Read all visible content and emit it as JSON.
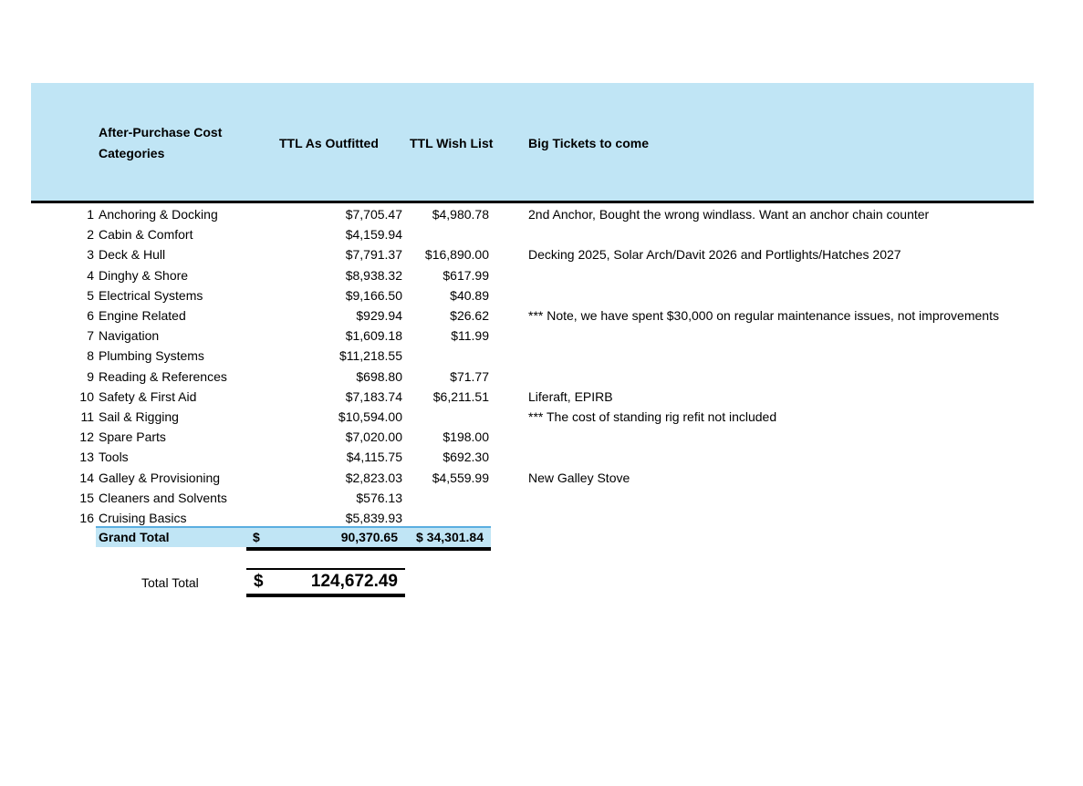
{
  "header": {
    "category": "After-Purchase Cost Categories",
    "outfitted": "TTL As Outfitted",
    "wish": "TTL Wish List",
    "tickets": "Big Tickets to come"
  },
  "rows": [
    {
      "n": "1",
      "name": "Anchoring & Docking",
      "out": "$7,705.47",
      "wish": "$4,980.78",
      "note": "2nd Anchor, Bought the wrong windlass.  Want an anchor chain counter"
    },
    {
      "n": "2",
      "name": "Cabin & Comfort",
      "out": "$4,159.94",
      "wish": "",
      "note": ""
    },
    {
      "n": "3",
      "name": "Deck & Hull",
      "out": "$7,791.37",
      "wish": "$16,890.00",
      "note": "Decking 2025, Solar Arch/Davit 2026  and Portlights/Hatches 2027"
    },
    {
      "n": "4",
      "name": "Dinghy & Shore",
      "out": "$8,938.32",
      "wish": "$617.99",
      "note": ""
    },
    {
      "n": "5",
      "name": "Electrical Systems",
      "out": "$9,166.50",
      "wish": "$40.89",
      "note": ""
    },
    {
      "n": "6",
      "name": "Engine Related",
      "out": "$929.94",
      "wish": "$26.62",
      "note": " *** Note, we have spent $30,000 on regular maintenance issues, not improvements"
    },
    {
      "n": "7",
      "name": "Navigation",
      "out": "$1,609.18",
      "wish": "$11.99",
      "note": ""
    },
    {
      "n": "8",
      "name": "Plumbing Systems",
      "out": "$11,218.55",
      "wish": "",
      "note": ""
    },
    {
      "n": "9",
      "name": "Reading & References",
      "out": "$698.80",
      "wish": "$71.77",
      "note": ""
    },
    {
      "n": "10",
      "name": "Safety & First Aid",
      "out": "$7,183.74",
      "wish": "$6,211.51",
      "note": "Liferaft, EPIRB"
    },
    {
      "n": "11",
      "name": "Sail & Rigging",
      "out": "$10,594.00",
      "wish": "",
      "note": " ***  The cost of standing rig refit not included"
    },
    {
      "n": "12",
      "name": "Spare Parts",
      "out": "$7,020.00",
      "wish": "$198.00",
      "note": ""
    },
    {
      "n": "13",
      "name": "Tools",
      "out": "$4,115.75",
      "wish": "$692.30",
      "note": ""
    },
    {
      "n": "14",
      "name": "Galley & Provisioning",
      "out": "$2,823.03",
      "wish": "$4,559.99",
      "note": "New Galley Stove"
    },
    {
      "n": "15",
      "name": "Cleaners and Solvents",
      "out": "$576.13",
      "wish": "",
      "note": ""
    },
    {
      "n": "16",
      "name": "Cruising Basics",
      "out": "$5,839.93",
      "wish": "",
      "note": ""
    }
  ],
  "grand_total": {
    "label": "Grand Total",
    "currency": "$",
    "out": "90,370.65",
    "wish": "$ 34,301.84"
  },
  "total_total": {
    "label": "Total Total",
    "currency": "$",
    "value": "124,672.49"
  },
  "colors": {
    "header_bg": "#c0e5f5",
    "total_line": "#5aaee0"
  }
}
